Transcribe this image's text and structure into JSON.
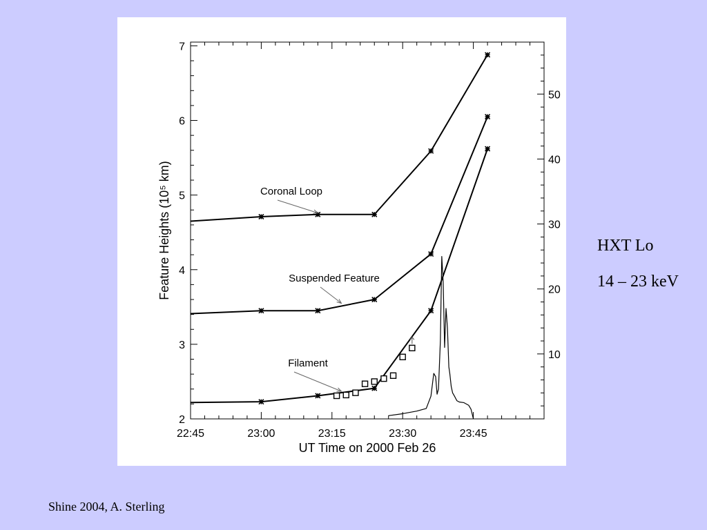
{
  "caption": {
    "line1": "HXT Lo",
    "line2": "14 – 23 keV"
  },
  "credit": "Shine 2004, A. Sterling",
  "chart_data": {
    "type": "line",
    "title": "",
    "xlabel": "UT Time on 2000 Feb 26",
    "ylabel": "Feature Heights (10⁵ km)",
    "x_unit": "UT time (HH:MM, 2000 Feb 26)",
    "xlim": [
      "22:45",
      "00:00"
    ],
    "ylim": [
      2,
      7.05
    ],
    "x_ticks": [
      "22:45",
      "23:00",
      "23:15",
      "23:30",
      "23:45"
    ],
    "y_ticks": [
      2,
      3,
      4,
      5,
      6,
      7
    ],
    "y2_ticks": [
      10,
      20,
      30,
      40,
      50
    ],
    "y2_range": [
      0,
      58
    ],
    "grid": false,
    "series": [
      {
        "name": "Coronal Loop",
        "marker": "asterisk",
        "x": [
          "22:45",
          "23:00",
          "23:12",
          "23:24",
          "23:36",
          "23:48"
        ],
        "y": [
          4.65,
          4.71,
          4.74,
          4.74,
          5.59,
          6.88
        ]
      },
      {
        "name": "Suspended Feature",
        "marker": "asterisk",
        "x": [
          "22:45",
          "23:00",
          "23:12",
          "23:24",
          "23:36",
          "23:48"
        ],
        "y": [
          3.41,
          3.45,
          3.45,
          3.6,
          4.21,
          6.05
        ]
      },
      {
        "name": "Filament",
        "marker": "asterisk",
        "x": [
          "22:45",
          "23:00",
          "23:12",
          "23:24",
          "23:36",
          "23:48"
        ],
        "y": [
          2.22,
          2.23,
          2.31,
          2.41,
          3.45,
          5.62
        ]
      },
      {
        "name": "Filament",
        "marker": "open-square",
        "x": [
          "23:16",
          "23:18",
          "23:20",
          "23:22",
          "23:24",
          "23:26",
          "23:28",
          "23:30",
          "23:32"
        ],
        "y": [
          2.31,
          2.32,
          2.35,
          2.47,
          2.5,
          2.54,
          2.58,
          2.83,
          2.95
        ]
      },
      {
        "name": "HXT Lo 14 – 23 keV",
        "axis": "right",
        "marker": "none",
        "x": [
          "23:27",
          "23:30",
          "23:33",
          "23:35",
          "23:36",
          "23:36.6",
          "23:37",
          "23:37.3",
          "23:37.6",
          "23:38",
          "23:38.3",
          "23:38.6",
          "23:38.9",
          "23:39.2",
          "23:39.5",
          "23:39.8",
          "23:40",
          "23:40.3",
          "23:40.6",
          "23:41",
          "23:41.5",
          "23:42",
          "23:43",
          "23:44",
          "23:44.5",
          "23:45"
        ],
        "y": [
          0.5,
          0.8,
          1.2,
          1.6,
          3.5,
          7.0,
          6.5,
          3.8,
          4.6,
          12.0,
          25.0,
          21.0,
          11.0,
          17.0,
          14.0,
          8.0,
          7.0,
          5.0,
          4.0,
          3.5,
          2.8,
          2.6,
          2.5,
          2.1,
          1.5,
          0.0
        ]
      }
    ],
    "annotations": [
      {
        "text": "Coronal Loop",
        "points_to": {
          "x": "23:12",
          "y": 4.76
        }
      },
      {
        "text": "Suspended Feature",
        "points_to": {
          "x": "23:17",
          "y": 3.55
        }
      },
      {
        "text": "Filament",
        "points_to": {
          "x": "23:17",
          "y": 2.37
        }
      }
    ]
  }
}
